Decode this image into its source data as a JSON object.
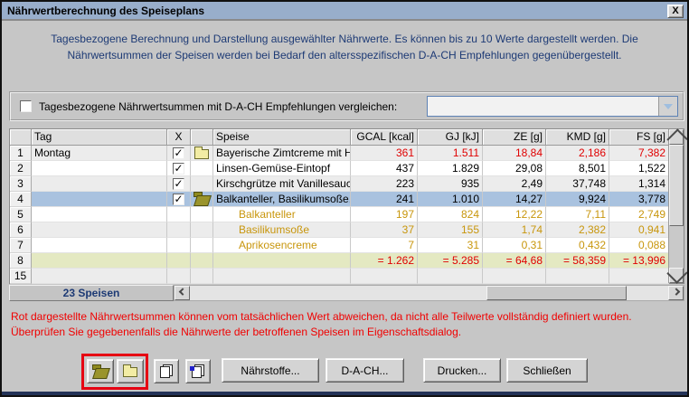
{
  "window": {
    "title": "Nährwertberechnung des Speiseplans",
    "close_label": "X"
  },
  "intro": {
    "line1": "Tagesbezogene Berechnung und Darstellung ausgewählter Nährwerte. Es können bis zu 10 Werte dargestellt werden. Die",
    "line2": "Nährwertsummen der Speisen werden bei Bedarf den altersspezifischen D-A-CH Empfehlungen gegenübergestellt."
  },
  "compare": {
    "label": "Tagesbezogene Nährwertsummen mit D-A-CH Empfehlungen vergleichen:",
    "checked": false,
    "selected_value": ""
  },
  "table": {
    "columns": {
      "num": "",
      "tag": "Tag",
      "check": "X",
      "folder": "",
      "speise": "Speise",
      "v0": "GCAL [kcal]",
      "v1": "GJ [kJ]",
      "v2": "ZE [g]",
      "v3": "KMD [g]",
      "v4": "FS [g]"
    },
    "rows": [
      {
        "num": "1",
        "tag": "Montag",
        "checked": true,
        "folder": "closed",
        "speise": "Bayerische Zimtcreme mit Honig Top..",
        "values": [
          "361",
          "1.511",
          "18,84",
          "2,186",
          "7,382"
        ]
      },
      {
        "num": "2",
        "tag": "",
        "checked": true,
        "folder": "",
        "speise": "Linsen-Gemüse-Eintopf",
        "values": [
          "437",
          "1.829",
          "29,08",
          "8,501",
          "1,522"
        ]
      },
      {
        "num": "3",
        "tag": "",
        "checked": true,
        "folder": "",
        "speise": "Kirschgrütze mit Vanillesauce",
        "values": [
          "223",
          "935",
          "2,49",
          "37,748",
          "1,314"
        ]
      },
      {
        "num": "4",
        "tag": "",
        "checked": true,
        "folder": "open",
        "speise": "Balkanteller, Basilikumsoße, Apriko..",
        "values": [
          "241",
          "1.010",
          "14,27",
          "9,924",
          "3,778"
        ],
        "selected": true
      },
      {
        "num": "5",
        "tag": "",
        "checked": false,
        "folder": "",
        "speise": "Balkanteller",
        "values": [
          "197",
          "824",
          "12,22",
          "7,11",
          "2,749"
        ]
      },
      {
        "num": "6",
        "tag": "",
        "checked": false,
        "folder": "",
        "speise": "Basilikumsoße",
        "values": [
          "37",
          "155",
          "1,74",
          "2,382",
          "0,941"
        ]
      },
      {
        "num": "7",
        "tag": "",
        "checked": false,
        "folder": "",
        "speise": "Aprikosencreme",
        "values": [
          "7",
          "31",
          "0,31",
          "0,432",
          "0,088"
        ]
      },
      {
        "num": "8",
        "tag": "",
        "checked": false,
        "folder": "",
        "speise": "",
        "values": [
          "= 1.262",
          "= 5.285",
          "= 64,68",
          "= 58,359",
          "= 13,996"
        ],
        "is_sum": true
      },
      {
        "num": "15",
        "tag": "",
        "checked": false,
        "folder": "",
        "speise": "",
        "values": [
          "",
          "",
          "",
          "",
          ""
        ]
      }
    ],
    "footer_count": "23 Speisen"
  },
  "warning": {
    "line1": "Rot dargestellte Nährwertsummen können vom tatsächlichen Wert abweichen, da nicht alle Teilwerte vollständig definiert wurden.",
    "line2": "Überprüfen Sie gegebenenfalls die Nährwerte der betroffenen Speisen im Eigenschaftsdialog."
  },
  "buttons": {
    "naehrstoffe": "Nährstoffe...",
    "dach": "D-A-CH...",
    "drucken": "Drucken...",
    "schliessen": "Schließen"
  },
  "icons": {
    "open_folder": "open-folder-icon",
    "closed_folder": "closed-folder-icon",
    "copy": "copy-pages-icon",
    "copy_colored": "copy-pages-colored-icon"
  },
  "colors": {
    "titlebar": "#98AECB",
    "dialog_bg": "#C6C6C6",
    "selected_row": "#A9C2DF",
    "sum_row_bg": "#E4E9C2",
    "incomplete_red": "#E00000",
    "component_orange": "#C8960C",
    "info_navy": "#1D3A75",
    "warning_red": "#F00000",
    "highlight_frame": "#E60012"
  }
}
